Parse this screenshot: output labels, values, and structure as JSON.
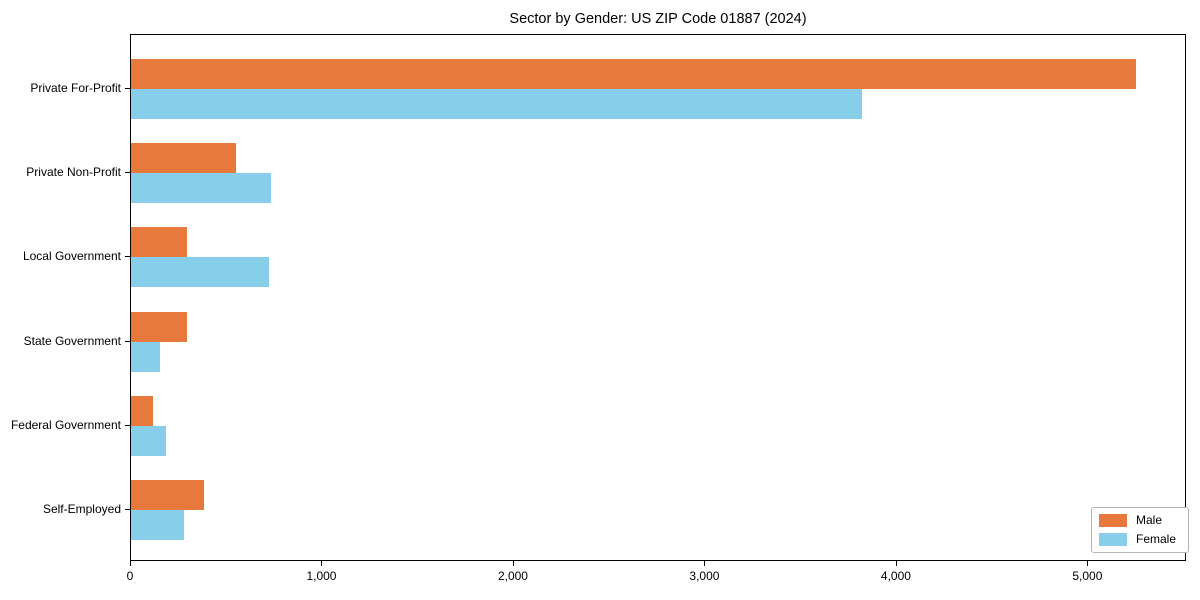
{
  "title": "Sector by Gender: US ZIP Code 01887 (2024)",
  "chart_data": {
    "type": "bar",
    "orientation": "horizontal",
    "title": "Sector by Gender: US ZIP Code 01887 (2024)",
    "categories": [
      "Private For-Profit",
      "Private Non-Profit",
      "Local Government",
      "State Government",
      "Federal Government",
      "Self-Employed"
    ],
    "series": [
      {
        "name": "Male",
        "color": "#e8793c",
        "values": [
          5250,
          550,
          295,
          295,
          117,
          380
        ]
      },
      {
        "name": "Female",
        "color": "#87ceeb",
        "values": [
          3820,
          730,
          720,
          150,
          185,
          275
        ]
      }
    ],
    "xlabel": "",
    "ylabel": "",
    "x_tick_labels": [
      "0",
      "1,000",
      "2,000",
      "3,000",
      "4,000",
      "5,000"
    ],
    "x_tick_values": [
      0,
      1000,
      2000,
      3000,
      4000,
      5000
    ],
    "xlim": [
      0,
      5515
    ],
    "grid": false,
    "legend_position": "lower right",
    "spine_color": "#000000",
    "background_color": "#ffffff"
  }
}
